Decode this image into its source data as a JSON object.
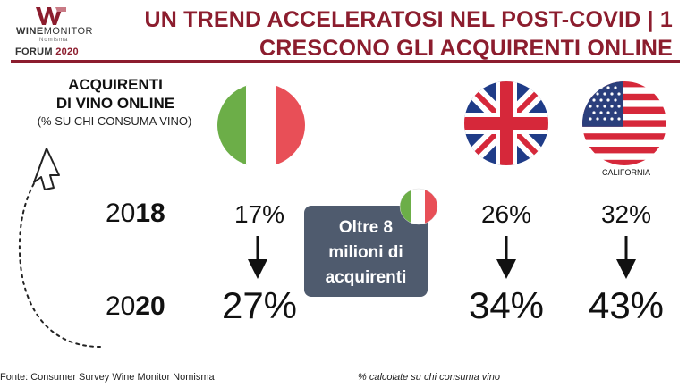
{
  "header": {
    "logo_name_bold": "WINE",
    "logo_name_light": "MONITOR",
    "logo_sub": "Nomisma",
    "forum_label": "FORUM",
    "forum_year": "2020",
    "title_line1": "UN TREND ACCELERATOSI NEL POST-COVID | 1",
    "title_line2": "CRESCONO GLI ACQUIRENTI ONLINE"
  },
  "label": {
    "title_line1": "ACQUIRENTI",
    "title_line2": "DI VINO ONLINE",
    "subtitle": "(% SU CHI CONSUMA VINO)"
  },
  "years": {
    "y1_prefix": "20",
    "y1_suffix": "18",
    "y2_prefix": "20",
    "y2_suffix": "20"
  },
  "countries": [
    {
      "flag": "italy-flag",
      "v2018": "17%",
      "v2020": "27%"
    },
    {
      "flag": "uk-flag",
      "v2018": "26%",
      "v2020": "34%"
    },
    {
      "flag": "usa-flag",
      "caption": "CALIFORNIA",
      "v2018": "32%",
      "v2020": "43%"
    }
  ],
  "callout": {
    "line1": "Oltre 8",
    "line2": "milioni di",
    "line3": "acquirenti"
  },
  "footer": {
    "source": "Fonte: Consumer Survey Wine Monitor Nomisma",
    "note": "% calcolate su chi consuma vino"
  },
  "colors": {
    "brand": "#8c1d2e",
    "callout_bg": "#4f5b6e",
    "italy_green": "#6cae48",
    "italy_red": "#e84f57"
  }
}
